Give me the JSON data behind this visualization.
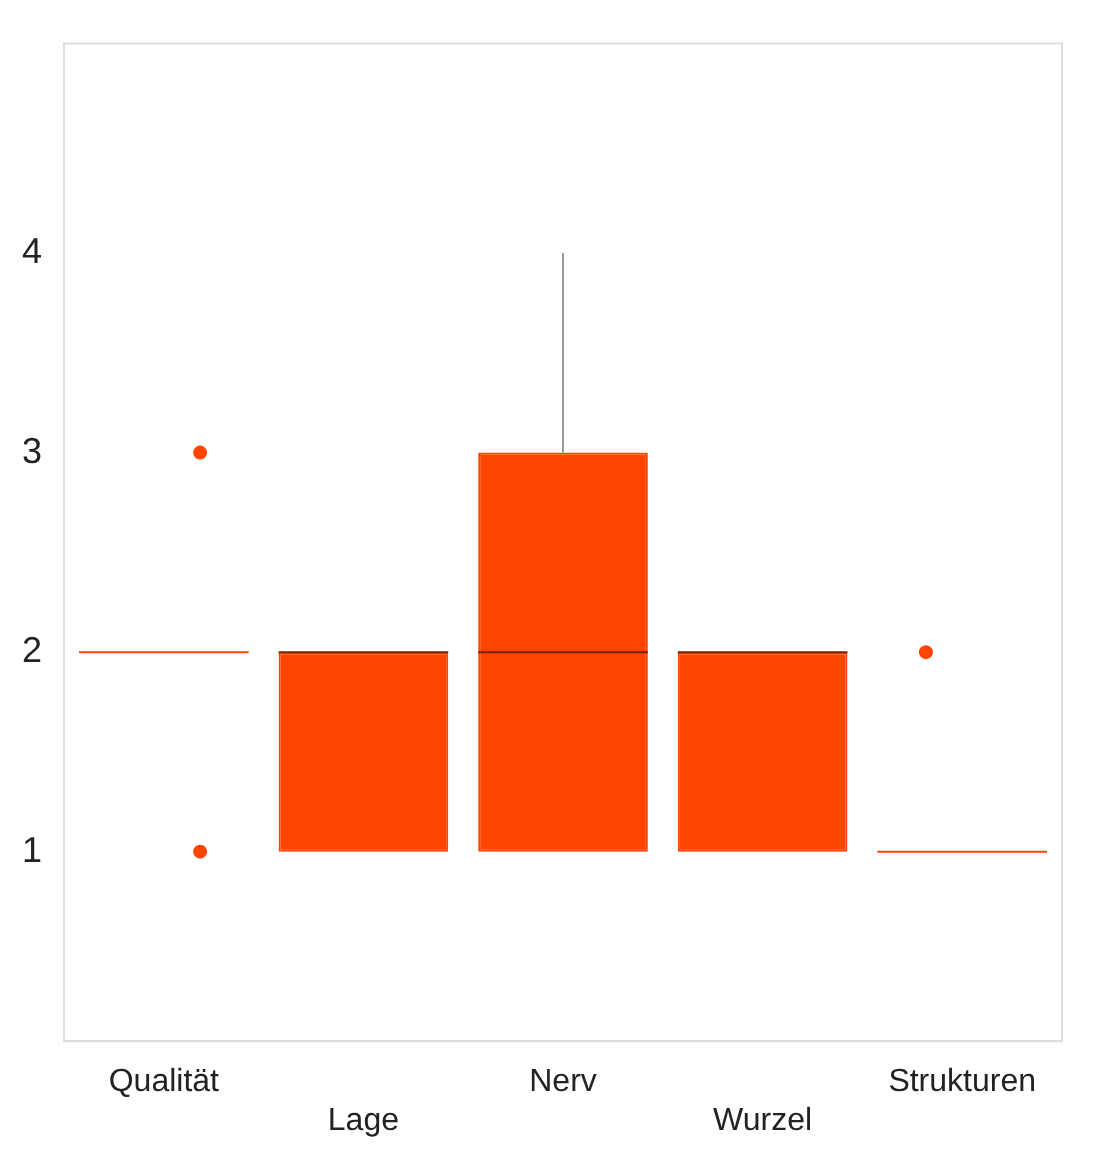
{
  "chart_data": {
    "type": "box",
    "categories": [
      "Qualität",
      "Lage",
      "Nerv",
      "Wurzel",
      "Strukturen"
    ],
    "color": "#ff4500",
    "boxes": [
      {
        "low": 2,
        "q1": 2,
        "median": 2,
        "q3": 2,
        "high": 2,
        "outliers": [
          3,
          1
        ]
      },
      {
        "low": 1,
        "q1": 1,
        "median": 2,
        "q3": 2,
        "high": 2
      },
      {
        "low": 1,
        "q1": 1,
        "median": 2,
        "q3": 3,
        "high": 4
      },
      {
        "low": 1,
        "q1": 1,
        "median": 2,
        "q3": 2,
        "high": 2
      },
      {
        "low": 1,
        "q1": 1,
        "median": 1,
        "q3": 1,
        "high": 1,
        "outliers": [
          2
        ]
      }
    ],
    "ylim": [
      0.05,
      5.05
    ],
    "yticks": [
      1,
      2,
      3,
      4
    ]
  }
}
